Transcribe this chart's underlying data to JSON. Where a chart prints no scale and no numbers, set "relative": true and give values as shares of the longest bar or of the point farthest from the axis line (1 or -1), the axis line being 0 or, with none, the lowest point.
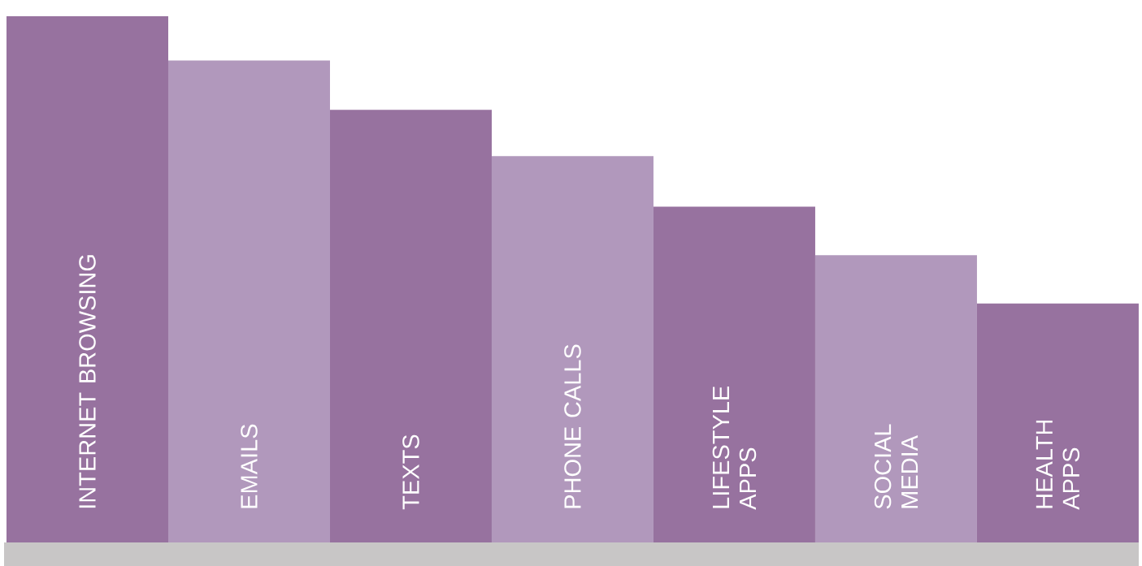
{
  "chart_data": {
    "type": "bar",
    "relative": true,
    "categories": [
      "INTERNET BROWSING",
      "EMAILS",
      "TEXTS",
      "PHONE CALLS",
      "LIFESTYLE APPS",
      "SOCIAL MEDIA",
      "HEALTH APPS"
    ],
    "values": [
      1,
      0.916,
      0.822,
      0.734,
      0.638,
      0.546,
      0.454
    ],
    "colors": [
      "#97729f",
      "#b198bc",
      "#97729f",
      "#b198bc",
      "#97729f",
      "#b198bc",
      "#97729f"
    ]
  }
}
